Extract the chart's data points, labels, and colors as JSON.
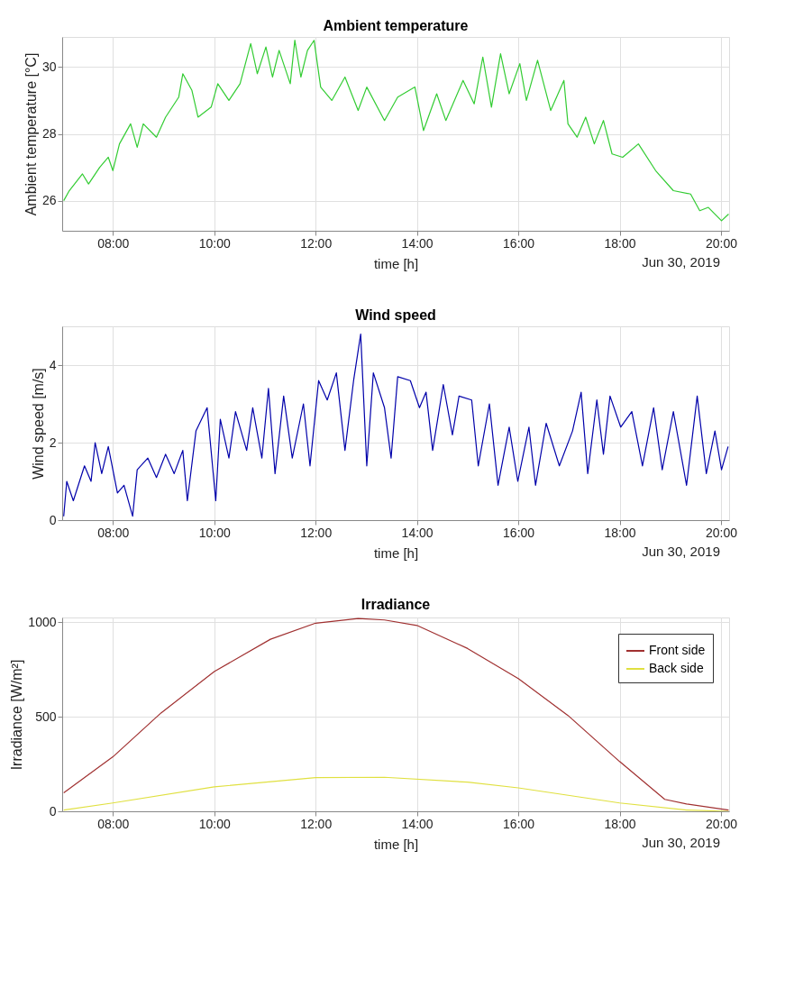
{
  "chart_data": [
    {
      "type": "line",
      "title": "Ambient temperature",
      "xlabel": "time [h]",
      "ylabel": "Ambient temperature [°C]",
      "annotations": [
        "Jun 30, 2019"
      ],
      "xlim": [
        7,
        20.16
      ],
      "xticks": [
        {
          "value": 8,
          "label": "08:00"
        },
        {
          "value": 10,
          "label": "10:00"
        },
        {
          "value": 12,
          "label": "12:00"
        },
        {
          "value": 14,
          "label": "14:00"
        },
        {
          "value": 16,
          "label": "16:00"
        },
        {
          "value": 18,
          "label": "18:00"
        },
        {
          "value": 20,
          "label": "20:00"
        }
      ],
      "ylim": [
        25.1,
        30.9
      ],
      "yticks": [
        26,
        28,
        30
      ],
      "grid": true,
      "series": [
        {
          "color": "#33cc33",
          "x": [
            7.03,
            7.14,
            7.4,
            7.52,
            7.74,
            7.91,
            8.0,
            8.13,
            8.35,
            8.48,
            8.6,
            8.86,
            9.04,
            9.3,
            9.38,
            9.56,
            9.68,
            9.94,
            10.07,
            10.29,
            10.51,
            10.72,
            10.85,
            11.02,
            11.15,
            11.28,
            11.5,
            11.59,
            11.71,
            11.84,
            11.97,
            12.1,
            12.32,
            12.58,
            12.84,
            13.01,
            13.36,
            13.62,
            13.96,
            14.13,
            14.39,
            14.57,
            14.91,
            15.13,
            15.3,
            15.47,
            15.65,
            15.82,
            16.03,
            16.16,
            16.38,
            16.64,
            16.9,
            16.98,
            17.16,
            17.33,
            17.5,
            17.68,
            17.85,
            18.06,
            18.37,
            18.71,
            19.06,
            19.4,
            19.58,
            19.75,
            20.01,
            20.15
          ],
          "values": [
            26.0,
            26.3,
            26.8,
            26.5,
            27.0,
            27.3,
            26.9,
            27.7,
            28.3,
            27.6,
            28.3,
            27.9,
            28.5,
            29.1,
            29.8,
            29.3,
            28.5,
            28.8,
            29.5,
            29.0,
            29.5,
            30.7,
            29.8,
            30.6,
            29.7,
            30.5,
            29.5,
            30.8,
            29.7,
            30.5,
            30.8,
            29.4,
            29.0,
            29.7,
            28.7,
            29.4,
            28.4,
            29.1,
            29.4,
            28.1,
            29.2,
            28.4,
            29.6,
            28.9,
            30.3,
            28.8,
            30.4,
            29.2,
            30.1,
            29.0,
            30.2,
            28.7,
            29.6,
            28.3,
            27.9,
            28.5,
            27.7,
            28.4,
            27.4,
            27.3,
            27.7,
            26.9,
            26.3,
            26.2,
            25.7,
            25.8,
            25.4,
            25.6
          ]
        }
      ]
    },
    {
      "type": "line",
      "title": "Wind speed",
      "xlabel": "time [h]",
      "ylabel": "Wind speed [m/s]",
      "annotations": [
        "Jun 30, 2019"
      ],
      "xlim": [
        7,
        20.16
      ],
      "xticks": [
        {
          "value": 8,
          "label": "08:00"
        },
        {
          "value": 10,
          "label": "10:00"
        },
        {
          "value": 12,
          "label": "12:00"
        },
        {
          "value": 14,
          "label": "14:00"
        },
        {
          "value": 16,
          "label": "16:00"
        },
        {
          "value": 18,
          "label": "18:00"
        },
        {
          "value": 20,
          "label": "20:00"
        }
      ],
      "ylim": [
        0,
        5
      ],
      "yticks": [
        0,
        2,
        4
      ],
      "grid": true,
      "series": [
        {
          "color": "#0000aa",
          "x": [
            7.03,
            7.09,
            7.22,
            7.44,
            7.57,
            7.65,
            7.78,
            7.91,
            8.09,
            8.22,
            8.39,
            8.48,
            8.69,
            8.86,
            9.04,
            9.21,
            9.38,
            9.47,
            9.64,
            9.86,
            10.03,
            10.12,
            10.29,
            10.42,
            10.64,
            10.76,
            10.94,
            11.07,
            11.2,
            11.37,
            11.54,
            11.76,
            11.89,
            12.06,
            12.23,
            12.41,
            12.58,
            12.75,
            12.89,
            13.01,
            13.14,
            13.36,
            13.49,
            13.62,
            13.87,
            14.05,
            14.18,
            14.31,
            14.52,
            14.7,
            14.83,
            15.08,
            15.21,
            15.43,
            15.6,
            15.82,
            15.99,
            16.21,
            16.34,
            16.55,
            16.81,
            17.07,
            17.24,
            17.37,
            17.55,
            17.68,
            17.81,
            18.02,
            18.24,
            18.45,
            18.67,
            18.84,
            19.06,
            19.32,
            19.53,
            19.71,
            19.88,
            20.01,
            20.14
          ],
          "values": [
            0.1,
            1.0,
            0.5,
            1.4,
            1.0,
            2.0,
            1.2,
            1.9,
            0.7,
            0.9,
            0.1,
            1.3,
            1.6,
            1.1,
            1.7,
            1.2,
            1.8,
            0.5,
            2.3,
            2.9,
            0.5,
            2.6,
            1.6,
            2.8,
            1.8,
            2.9,
            1.6,
            3.4,
            1.2,
            3.2,
            1.6,
            3.0,
            1.4,
            3.6,
            3.1,
            3.8,
            1.8,
            3.6,
            4.8,
            1.4,
            3.8,
            2.9,
            1.6,
            3.7,
            3.6,
            2.9,
            3.3,
            1.8,
            3.5,
            2.2,
            3.2,
            3.1,
            1.4,
            3.0,
            0.9,
            2.4,
            1.0,
            2.4,
            0.9,
            2.5,
            1.4,
            2.3,
            3.3,
            1.2,
            3.1,
            1.7,
            3.2,
            2.4,
            2.8,
            1.4,
            2.9,
            1.3,
            2.8,
            0.9,
            3.2,
            1.2,
            2.3,
            1.3,
            1.9
          ]
        }
      ]
    },
    {
      "type": "line",
      "title": "Irradiance",
      "xlabel": "time [h]",
      "ylabel": "Irradiance [W/m²]",
      "annotations": [
        "Jun 30, 2019"
      ],
      "xlim": [
        7,
        20.16
      ],
      "xticks": [
        {
          "value": 8,
          "label": "08:00"
        },
        {
          "value": 10,
          "label": "10:00"
        },
        {
          "value": 12,
          "label": "12:00"
        },
        {
          "value": 14,
          "label": "14:00"
        },
        {
          "value": 16,
          "label": "16:00"
        },
        {
          "value": 18,
          "label": "18:00"
        },
        {
          "value": 20,
          "label": "20:00"
        }
      ],
      "ylim": [
        0,
        1025
      ],
      "yticks": [
        0,
        500,
        1000
      ],
      "grid": true,
      "legend": "top right",
      "series": [
        {
          "name": "Front side",
          "color": "#a03030",
          "x": [
            7.03,
            8.0,
            8.95,
            10.0,
            11.11,
            12.0,
            12.84,
            13.36,
            14.0,
            15.0,
            16.0,
            16.98,
            18.0,
            18.89,
            19.32,
            20.15
          ],
          "values": [
            98,
            288,
            520,
            739,
            910,
            995,
            1020,
            1012,
            983,
            861,
            702,
            507,
            263,
            63,
            39,
            7
          ]
        },
        {
          "name": "Back side",
          "color": "#e0e040",
          "x": [
            7.03,
            8.0,
            10.0,
            12.0,
            13.36,
            15.0,
            16.0,
            18.0,
            19.32,
            20.15
          ],
          "values": [
            7,
            44,
            129,
            178,
            180,
            154,
            124,
            44,
            7,
            0
          ]
        }
      ]
    }
  ]
}
